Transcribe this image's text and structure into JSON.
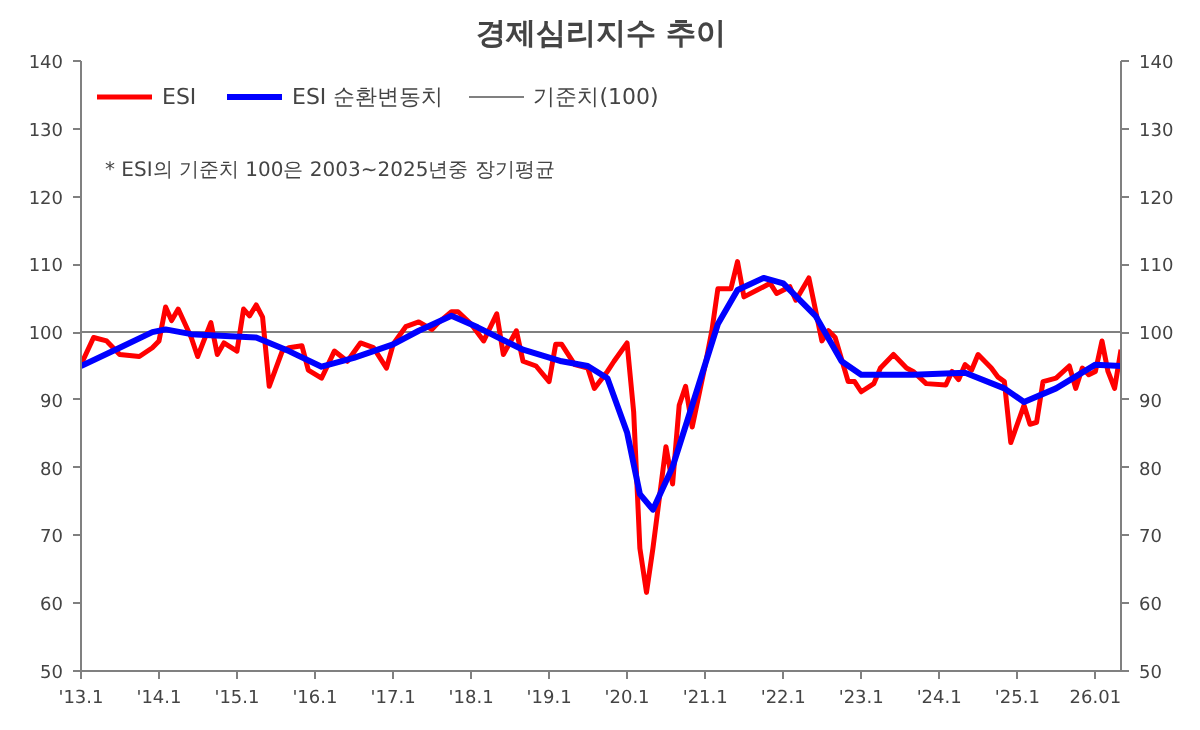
{
  "chart_data": {
    "type": "line",
    "title": "경제심리지수 추이",
    "annotations": [
      "* ESI의 기준치 100은 2003~2025년중 장기평균"
    ],
    "legend": "top left",
    "grid": false,
    "marker": "none",
    "line_style": "solid",
    "xlim": [
      "2013-01",
      "2026-05"
    ],
    "xticks": [
      {
        "value": "2013-01",
        "label": "'13.1"
      },
      {
        "value": "2014-01",
        "label": "'14.1"
      },
      {
        "value": "2015-01",
        "label": "'15.1"
      },
      {
        "value": "2016-01",
        "label": "'16.1"
      },
      {
        "value": "2017-01",
        "label": "'17.1"
      },
      {
        "value": "2018-01",
        "label": "'18.1"
      },
      {
        "value": "2019-01",
        "label": "'19.1"
      },
      {
        "value": "2020-01",
        "label": "'20.1"
      },
      {
        "value": "2021-01",
        "label": "'21.1"
      },
      {
        "value": "2022-01",
        "label": "'22.1"
      },
      {
        "value": "2023-01",
        "label": "'23.1"
      },
      {
        "value": "2024-01",
        "label": "'24.1"
      },
      {
        "value": "2025-01",
        "label": "'25.1"
      },
      {
        "value": "2026-01",
        "label": "26.01"
      }
    ],
    "ylim": [
      50,
      140
    ],
    "yticks": [
      50,
      60,
      70,
      80,
      90,
      100,
      110,
      120,
      130,
      140
    ],
    "y2lim": [
      50,
      140
    ],
    "y2ticks": [
      50,
      60,
      70,
      80,
      90,
      100,
      110,
      120,
      130,
      140
    ],
    "ref_lines": [
      {
        "axis": "y",
        "value": 100,
        "label": "기준치(100)",
        "color": "#808080"
      }
    ],
    "series": [
      {
        "name": "ESI",
        "color": "#ff0000",
        "x": [
          "2013-01",
          "2013-03",
          "2013-05",
          "2013-07",
          "2013-10",
          "2013-12",
          "2014-01",
          "2014-02",
          "2014-03",
          "2014-04",
          "2014-06",
          "2014-07",
          "2014-09",
          "2014-10",
          "2014-11",
          "2015-01",
          "2015-02",
          "2015-03",
          "2015-04",
          "2015-05",
          "2015-06",
          "2015-08",
          "2015-09",
          "2015-11",
          "2015-12",
          "2016-02",
          "2016-04",
          "2016-06",
          "2016-08",
          "2016-10",
          "2016-12",
          "2017-01",
          "2017-03",
          "2017-05",
          "2017-07",
          "2017-08",
          "2017-10",
          "2017-11",
          "2018-01",
          "2018-03",
          "2018-05",
          "2018-06",
          "2018-08",
          "2018-09",
          "2018-11",
          "2019-01",
          "2019-02",
          "2019-03",
          "2019-05",
          "2019-07",
          "2019-08",
          "2019-10",
          "2019-11",
          "2020-01",
          "2020-02",
          "2020-03",
          "2020-04",
          "2020-05",
          "2020-07",
          "2020-08",
          "2020-09",
          "2020-10",
          "2020-11",
          "2021-01",
          "2021-02",
          "2021-03",
          "2021-05",
          "2021-06",
          "2021-07",
          "2021-09",
          "2021-11",
          "2021-12",
          "2022-02",
          "2022-03",
          "2022-05",
          "2022-07",
          "2022-08",
          "2022-09",
          "2022-11",
          "2022-12",
          "2023-01",
          "2023-03",
          "2023-04",
          "2023-06",
          "2023-08",
          "2023-09",
          "2023-11",
          "2024-02",
          "2024-03",
          "2024-04",
          "2024-05",
          "2024-06",
          "2024-07",
          "2024-09",
          "2024-10",
          "2024-11",
          "2024-12",
          "2025-02",
          "2025-03",
          "2025-04",
          "2025-05",
          "2025-07",
          "2025-09",
          "2025-10",
          "2025-11",
          "2025-12",
          "2026-01",
          "2026-02",
          "2026-03",
          "2026-04",
          "2026-05"
        ],
        "values": [
          95.2,
          99.2,
          98.7,
          96.7,
          96.4,
          97.7,
          98.7,
          103.7,
          101.7,
          103.4,
          99.2,
          96.4,
          101.4,
          96.7,
          98.4,
          97.2,
          103.4,
          102.4,
          104,
          102.2,
          92,
          97.2,
          97.7,
          98,
          94.4,
          93.2,
          97.2,
          95.7,
          98.4,
          97.7,
          94.7,
          98.2,
          100.8,
          101.5,
          100.4,
          101.4,
          103,
          103,
          101.2,
          98.7,
          102.7,
          96.7,
          100.2,
          95.7,
          95,
          92.7,
          98.2,
          98.2,
          95.2,
          94.7,
          91.7,
          94.2,
          95.7,
          98.4,
          88.2,
          68.1,
          61.6,
          68.1,
          83.1,
          77.6,
          89.2,
          92,
          86,
          95.2,
          100.2,
          106.4,
          106.4,
          110.4,
          105.2,
          106.2,
          107.2,
          105.7,
          106.7,
          104.7,
          108,
          98.7,
          100.2,
          99.2,
          92.7,
          92.7,
          91.2,
          92.4,
          94.7,
          96.7,
          94.7,
          94.2,
          92.4,
          92.2,
          94.2,
          93,
          95.2,
          94.4,
          96.7,
          94.7,
          93.4,
          92.7,
          83.7,
          89.2,
          86.4,
          86.7,
          92.7,
          93.2,
          95,
          91.7,
          94.7,
          93.7,
          94.2,
          98.7,
          94.2,
          91.7,
          97.4
        ]
      },
      {
        "name": "ESI 순환변동치",
        "color": "#0000ff",
        "x": [
          "2013-01",
          "2013-07",
          "2013-12",
          "2014-02",
          "2014-06",
          "2014-12",
          "2015-04",
          "2015-09",
          "2016-02",
          "2016-07",
          "2017-01",
          "2017-05",
          "2017-10",
          "2018-02",
          "2018-09",
          "2019-03",
          "2019-07",
          "2019-10",
          "2020-01",
          "2020-03",
          "2020-05",
          "2020-08",
          "2020-12",
          "2021-03",
          "2021-06",
          "2021-10",
          "2022-01",
          "2022-06",
          "2022-10",
          "2023-01",
          "2023-09",
          "2024-05",
          "2024-11",
          "2025-02",
          "2025-07",
          "2026-01",
          "2026-05"
        ],
        "values": [
          95,
          97.7,
          100,
          100.4,
          99.7,
          99.4,
          99.2,
          97.2,
          94.9,
          96.2,
          98.2,
          100.2,
          102.4,
          100.7,
          97.4,
          95.7,
          95,
          93.2,
          85.2,
          76.1,
          73.8,
          80.1,
          92.2,
          101.2,
          106.2,
          108,
          107.2,
          102.4,
          95.7,
          93.7,
          93.7,
          94,
          91.7,
          89.7,
          91.7,
          95.2,
          95
        ]
      }
    ]
  }
}
